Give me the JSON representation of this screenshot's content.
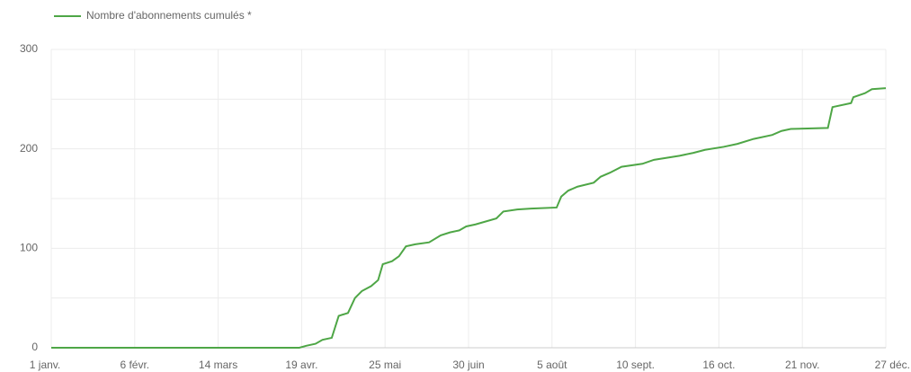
{
  "chart_data": {
    "type": "line",
    "series": [
      {
        "name": "Nombre d'abonnements cumulés *",
        "color": "#4ea646",
        "x": [
          0,
          107,
          110,
          114,
          117,
          121,
          124,
          128,
          131,
          134,
          138,
          141,
          143,
          147,
          150,
          153,
          157,
          163,
          168,
          172,
          176,
          179,
          183,
          192,
          195,
          201,
          207,
          218,
          220,
          223,
          227,
          234,
          237,
          241,
          246,
          255,
          260,
          271,
          277,
          282,
          290,
          296,
          303,
          311,
          315,
          319,
          335,
          337,
          345,
          346,
          351,
          354,
          360
        ],
        "values": [
          0,
          0,
          2,
          4,
          8,
          10,
          32,
          35,
          50,
          57,
          62,
          68,
          84,
          87,
          92,
          102,
          104,
          106,
          113,
          116,
          118,
          122,
          124,
          130,
          137,
          139,
          140,
          141,
          152,
          158,
          162,
          166,
          172,
          176,
          182,
          185,
          189,
          193,
          196,
          199,
          202,
          205,
          210,
          214,
          218,
          220,
          221,
          242,
          246,
          252,
          256,
          260,
          261
        ]
      }
    ],
    "xlim": [
      0,
      360
    ],
    "xticks": [
      {
        "value": 0,
        "label": "1 janv."
      },
      {
        "value": 36,
        "label": "6 févr."
      },
      {
        "value": 72,
        "label": "14 mars"
      },
      {
        "value": 108,
        "label": "19 avr."
      },
      {
        "value": 144,
        "label": "25 mai"
      },
      {
        "value": 180,
        "label": "30 juin"
      },
      {
        "value": 216,
        "label": "5 août"
      },
      {
        "value": 252,
        "label": "10 sept."
      },
      {
        "value": 288,
        "label": "16 oct."
      },
      {
        "value": 324,
        "label": "21 nov."
      },
      {
        "value": 360,
        "label": "27 déc."
      }
    ],
    "ylim": [
      0,
      300
    ],
    "yticks": [
      0,
      100,
      200,
      300
    ],
    "minor_yticks": [
      50,
      150,
      250
    ],
    "grid": true,
    "legend": "top-left"
  }
}
